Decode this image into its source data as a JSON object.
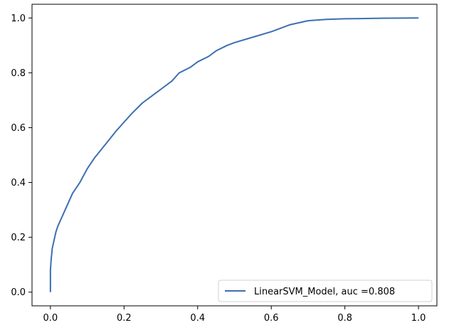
{
  "chart_data": {
    "type": "line",
    "title": "",
    "xlabel": "",
    "ylabel": "",
    "xlim": [
      -0.05,
      1.05
    ],
    "ylim": [
      -0.05,
      1.05
    ],
    "xticks": [
      "0.0",
      "0.2",
      "0.4",
      "0.6",
      "0.8",
      "1.0"
    ],
    "yticks": [
      "0.0",
      "0.2",
      "0.4",
      "0.6",
      "0.8",
      "1.0"
    ],
    "grid": false,
    "legend_position": "lower right",
    "series": [
      {
        "name": "LinearSVM_Model, auc =0.808",
        "color": "#3d6fb0",
        "x": [
          0,
          0,
          0.002,
          0.005,
          0.01,
          0.015,
          0.02,
          0.03,
          0.04,
          0.05,
          0.06,
          0.08,
          0.1,
          0.12,
          0.15,
          0.18,
          0.2,
          0.22,
          0.25,
          0.28,
          0.3,
          0.33,
          0.35,
          0.38,
          0.4,
          0.43,
          0.45,
          0.48,
          0.5,
          0.55,
          0.6,
          0.65,
          0.7,
          0.75,
          0.8,
          0.9,
          1.0
        ],
        "y": [
          0,
          0.08,
          0.12,
          0.16,
          0.19,
          0.22,
          0.24,
          0.27,
          0.3,
          0.33,
          0.36,
          0.4,
          0.45,
          0.49,
          0.54,
          0.59,
          0.62,
          0.65,
          0.69,
          0.72,
          0.74,
          0.77,
          0.8,
          0.82,
          0.84,
          0.86,
          0.88,
          0.9,
          0.91,
          0.93,
          0.95,
          0.975,
          0.99,
          0.995,
          0.997,
          0.999,
          1.0
        ]
      }
    ]
  }
}
